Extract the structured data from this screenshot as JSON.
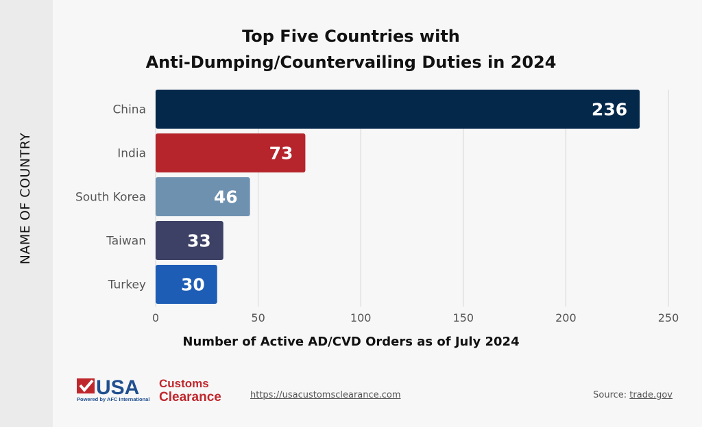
{
  "chart_data": {
    "type": "bar",
    "orientation": "horizontal",
    "title": "Top Five Countries with Anti-Dumping/Countervailing Duties in 2024",
    "title_lines": [
      "Top Five Countries with",
      "Anti-Dumping/Countervailing Duties in 2024"
    ],
    "xlabel": "Number of Active AD/CVD Orders as of July 2024",
    "ylabel": "NAME OF COUNTRY",
    "categories": [
      "China",
      "India",
      "South Korea",
      "Taiwan",
      "Turkey"
    ],
    "values": [
      236,
      73,
      46,
      33,
      30
    ],
    "colors": [
      "#04284a",
      "#b5252b",
      "#6e91b0",
      "#3e4166",
      "#1e5db5"
    ],
    "xlim": [
      0,
      250
    ],
    "xticks": [
      0,
      50,
      100,
      150,
      200,
      250
    ],
    "grid": true,
    "data_labels": true
  },
  "footer": {
    "logo": {
      "usa": "USA",
      "customs": "Customs",
      "clearance": "Clearance",
      "powered": "Powered by AFC International"
    },
    "url": "https://usacustomsclearance.com",
    "source_prefix": "Source:",
    "source_link": "trade.gov"
  }
}
